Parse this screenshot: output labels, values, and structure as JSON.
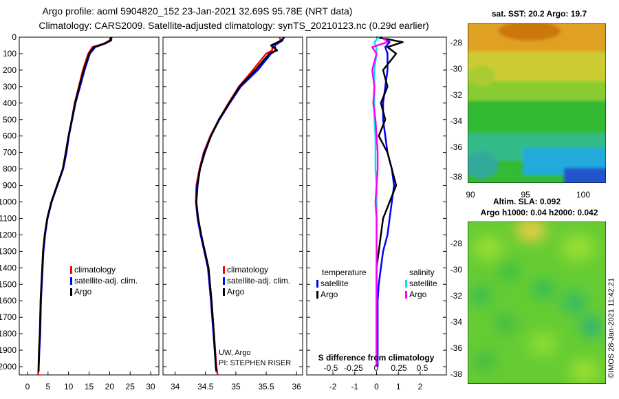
{
  "header": {
    "title_line1": "Argo profile: aoml 5904820_152 23-Jan-2021 32.69S 95.78E (NRT data)",
    "title_line2": "Climatology: CARS2009. Satellite-adjusted climatology: synTS_20210123.nc (0.29d earlier)"
  },
  "colors": {
    "climatology": "#ff0000",
    "satellite": "#0000ff",
    "argo": "#000000",
    "salinity_satellite": "#00e5e5",
    "salinity_argo": "#ff00ff"
  },
  "depth_axis": {
    "range": [
      0,
      2050
    ],
    "ticks": [
      "0",
      "100",
      "200",
      "300",
      "400",
      "500",
      "600",
      "700",
      "800",
      "900",
      "1000",
      "1100",
      "1200",
      "1300",
      "1400",
      "1500",
      "1600",
      "1700",
      "1800",
      "1900",
      "2000"
    ]
  },
  "chart_data": [
    {
      "type": "line",
      "name": "temperature-profile",
      "xlim": [
        -2,
        32
      ],
      "xticks": [
        "0",
        "5",
        "10",
        "15",
        "20",
        "25",
        "30"
      ],
      "legend": [
        "climatology",
        "satellite-adj. clim.",
        "Argo"
      ],
      "series": [
        {
          "name": "climatology",
          "color_key": "climatology",
          "x": [
            20.2,
            20.0,
            18.5,
            15.8,
            14.8,
            13.5,
            12.5,
            11.5,
            10.8,
            10.0,
            9.4,
            8.6,
            7.2,
            5.8,
            4.8,
            4.2,
            3.8,
            3.4,
            3.2,
            3.0,
            2.8,
            2.6
          ],
          "y": [
            0,
            20,
            40,
            60,
            100,
            200,
            300,
            400,
            500,
            600,
            700,
            800,
            900,
            1000,
            1100,
            1200,
            1300,
            1500,
            1600,
            1800,
            1900,
            2050
          ]
        },
        {
          "name": "satellite-adj. clim.",
          "color_key": "satellite",
          "x": [
            20.5,
            20.4,
            18.8,
            16.5,
            15.2,
            13.9,
            12.8,
            11.7,
            10.9,
            10.1,
            9.5,
            8.7,
            7.3,
            5.9,
            4.9,
            4.3,
            3.9,
            3.5,
            3.3,
            3.1,
            2.9,
            2.7
          ],
          "y": [
            0,
            20,
            40,
            60,
            100,
            200,
            300,
            400,
            500,
            600,
            700,
            800,
            900,
            1000,
            1100,
            1200,
            1300,
            1500,
            1600,
            1800,
            1900,
            2030
          ]
        },
        {
          "name": "Argo",
          "color_key": "argo",
          "x": [
            20.4,
            20.2,
            18.7,
            16.2,
            15.0,
            13.7,
            12.6,
            11.6,
            10.8,
            10.0,
            9.3,
            8.6,
            7.2,
            5.8,
            4.8,
            4.2,
            3.8,
            3.4,
            3.2,
            3.0,
            2.8,
            2.7
          ],
          "y": [
            0,
            20,
            40,
            60,
            100,
            200,
            300,
            400,
            500,
            600,
            700,
            800,
            900,
            1000,
            1100,
            1200,
            1300,
            1500,
            1600,
            1800,
            1900,
            2030
          ]
        }
      ]
    },
    {
      "type": "line",
      "name": "salinity-profile",
      "xlim": [
        33.8,
        36.1
      ],
      "xticks": [
        "34",
        "34.5",
        "35",
        "35.5",
        "36"
      ],
      "legend": [
        "climatology",
        "satellite-adj. clim.",
        "Argo"
      ],
      "annotations": [
        "UW, Argo",
        "PI: STEPHEN RISER"
      ],
      "series": [
        {
          "name": "climatology",
          "color_key": "climatology",
          "x": [
            35.72,
            35.74,
            35.6,
            35.6,
            35.5,
            35.28,
            35.05,
            34.88,
            34.72,
            34.58,
            34.47,
            34.4,
            34.35,
            34.34,
            34.37,
            34.42,
            34.49,
            34.55,
            34.6,
            34.64,
            34.68,
            34.7
          ],
          "y": [
            0,
            20,
            50,
            80,
            100,
            200,
            300,
            400,
            500,
            600,
            700,
            800,
            900,
            1000,
            1100,
            1200,
            1300,
            1400,
            1600,
            1800,
            2000,
            2050
          ]
        },
        {
          "name": "satellite-adj. clim.",
          "color_key": "satellite",
          "x": [
            35.78,
            35.77,
            35.64,
            35.66,
            35.58,
            35.36,
            35.08,
            34.9,
            34.73,
            34.59,
            34.48,
            34.41,
            34.36,
            34.35,
            34.37,
            34.42,
            34.48,
            34.54,
            34.59,
            34.63,
            34.67,
            34.68
          ],
          "y": [
            0,
            20,
            50,
            80,
            100,
            200,
            300,
            400,
            500,
            600,
            700,
            800,
            900,
            1000,
            1100,
            1200,
            1300,
            1400,
            1600,
            1800,
            2000,
            2030
          ]
        },
        {
          "name": "Argo",
          "color_key": "argo",
          "x": [
            35.8,
            35.75,
            35.58,
            35.68,
            35.55,
            35.32,
            35.06,
            34.89,
            34.72,
            34.59,
            34.49,
            34.41,
            34.37,
            34.35,
            34.38,
            34.43,
            34.49,
            34.55,
            34.6,
            34.64,
            34.67,
            34.68
          ],
          "y": [
            0,
            20,
            50,
            80,
            100,
            200,
            300,
            400,
            500,
            600,
            700,
            800,
            900,
            1000,
            1100,
            1200,
            1300,
            1400,
            1600,
            1800,
            2000,
            2030
          ]
        }
      ]
    },
    {
      "type": "line",
      "name": "difference-from-climatology",
      "xlim": [
        -3.2,
        3.2
      ],
      "xticks": [
        "-2",
        "-1",
        "0",
        "1",
        "2"
      ],
      "xticks_salinity": [
        "-0.5",
        "-0.25",
        "0",
        "0.25",
        "0.5"
      ],
      "xlabel": "S difference from climatology",
      "legend_titles": [
        "temperature",
        "salinity"
      ],
      "legend": [
        "satellite",
        "Argo",
        "satellite",
        "Argo"
      ],
      "series": [
        {
          "name": "temperature satellite",
          "color_key": "satellite",
          "x": [
            0.2,
            0.6,
            0.4,
            0.5,
            0.5,
            0.4,
            0.3,
            0.3,
            0.4,
            0.5,
            0.7,
            0.8,
            0.7,
            0.6,
            0.5,
            0.3,
            0.2,
            0.1,
            0.05,
            0.05,
            0.05
          ],
          "y": [
            0,
            30,
            60,
            100,
            200,
            300,
            400,
            500,
            600,
            700,
            800,
            900,
            1000,
            1100,
            1200,
            1300,
            1400,
            1500,
            1600,
            1800,
            2000
          ]
        },
        {
          "name": "temperature Argo",
          "color_key": "argo",
          "x": [
            0.0,
            1.2,
            0.5,
            0.9,
            0.3,
            0.5,
            0.2,
            0.4,
            0.1,
            0.5,
            0.7,
            0.9,
            0.6,
            0.3,
            0.2,
            0.1,
            0.0,
            0.0,
            0.0,
            0.0,
            0.0
          ],
          "y": [
            0,
            30,
            60,
            100,
            200,
            300,
            400,
            500,
            600,
            700,
            800,
            900,
            1000,
            1100,
            1200,
            1300,
            1400,
            1500,
            1600,
            1800,
            2000
          ]
        },
        {
          "name": "salinity satellite",
          "color_key": "salinity_satellite",
          "x": [
            0.1,
            -0.1,
            0.0,
            0.0,
            -0.1,
            -0.1,
            -0.1,
            -0.1,
            -0.05,
            -0.05,
            -0.05,
            0.0,
            0.0,
            0.0,
            0.0,
            0.0,
            0.0,
            0.0,
            0.0,
            0.0,
            0.0
          ],
          "y": [
            0,
            30,
            60,
            100,
            200,
            300,
            400,
            500,
            600,
            700,
            800,
            900,
            1000,
            1100,
            1200,
            1300,
            1400,
            1500,
            1600,
            1800,
            2000
          ]
        },
        {
          "name": "salinity Argo",
          "color_key": "salinity_argo",
          "x": [
            0.3,
            0.5,
            -0.2,
            0.0,
            -0.2,
            -0.1,
            -0.15,
            -0.05,
            0.0,
            0.05,
            0.05,
            0.0,
            -0.05,
            0.0,
            0.0,
            0.0,
            0.0,
            0.0,
            0.0,
            0.0,
            0.0
          ],
          "y": [
            0,
            30,
            60,
            100,
            200,
            300,
            400,
            500,
            600,
            700,
            800,
            900,
            1000,
            1100,
            1200,
            1300,
            1400,
            1500,
            1600,
            1800,
            2000
          ]
        }
      ]
    },
    {
      "type": "heatmap",
      "name": "sst-map",
      "title": "sat. SST: 20.2 Argo: 19.7",
      "xticks": [
        "90",
        "95",
        "100"
      ],
      "yticks": [
        "-28",
        "-30",
        "-32",
        "-34",
        "-36",
        "-38"
      ]
    },
    {
      "type": "heatmap",
      "name": "sla-map",
      "title_line1": "Altim. SLA: 0.092",
      "title_line2": "Argo h1000: 0.04 h2000: 0.042",
      "yticks": [
        "-28",
        "-30",
        "-32",
        "-34",
        "-36",
        "-38"
      ]
    }
  ],
  "footer": {
    "credit": "©IMOS 28-Jan-2021 11:42:21"
  }
}
